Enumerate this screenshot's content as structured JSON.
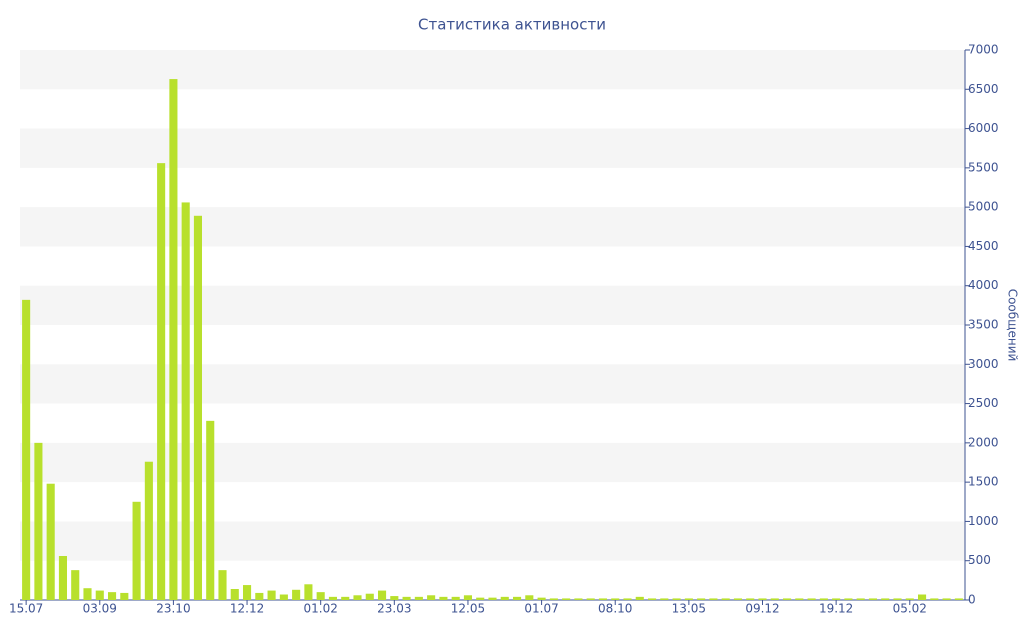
{
  "chart_data": {
    "type": "bar",
    "title": "Статистика активности",
    "y_axis_label": "Сообщений",
    "color": "#b8e02c",
    "categories": [
      "15.07",
      null,
      null,
      null,
      null,
      null,
      "03.09",
      null,
      null,
      null,
      null,
      null,
      "23.10",
      null,
      null,
      null,
      null,
      null,
      "12.12",
      null,
      null,
      null,
      null,
      null,
      "01.02",
      null,
      null,
      null,
      null,
      null,
      "23.03",
      null,
      null,
      null,
      null,
      null,
      "12.05",
      null,
      null,
      null,
      null,
      null,
      "01.07",
      null,
      null,
      null,
      null,
      null,
      "08.10",
      null,
      null,
      null,
      null,
      null,
      "13.05",
      null,
      null,
      null,
      null,
      null,
      "09.12",
      null,
      null,
      null,
      null,
      null,
      "19.12",
      null,
      null,
      null,
      null,
      null,
      "05.02",
      null,
      null,
      null,
      null
    ],
    "values": [
      3820,
      2000,
      1480,
      560,
      380,
      150,
      120,
      100,
      90,
      1250,
      1760,
      5560,
      6630,
      5060,
      4890,
      2280,
      380,
      140,
      190,
      90,
      120,
      70,
      130,
      200,
      100,
      40,
      40,
      60,
      80,
      120,
      50,
      40,
      40,
      60,
      40,
      40,
      60,
      30,
      30,
      40,
      40,
      60,
      30,
      20,
      20,
      20,
      20,
      20,
      20,
      20,
      40,
      20,
      20,
      20,
      20,
      20,
      20,
      20,
      20,
      20,
      20,
      20,
      20,
      20,
      20,
      20,
      20,
      20,
      20,
      20,
      20,
      20,
      20,
      70,
      20,
      20,
      20
    ],
    "ylim": [
      0,
      7000
    ],
    "yticks": [
      0,
      500,
      1000,
      1500,
      2000,
      2500,
      3000,
      3500,
      4000,
      4500,
      5000,
      5500,
      6000,
      6500,
      7000
    ],
    "grid": "bands"
  }
}
